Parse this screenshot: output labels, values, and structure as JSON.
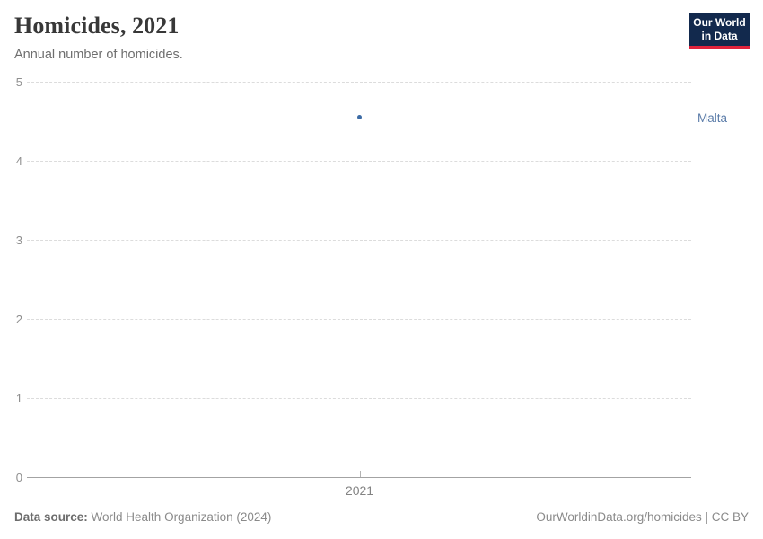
{
  "header": {
    "title": "Homicides, 2021",
    "subtitle": "Annual number of homicides.",
    "logo": {
      "line1": "Our World",
      "line2": "in Data",
      "background_color": "#12294d",
      "accent_color": "#e0233c"
    }
  },
  "chart_data": {
    "type": "scatter",
    "title": "Homicides, 2021",
    "subtitle": "Annual number of homicides.",
    "x": [
      2021
    ],
    "series": [
      {
        "name": "Malta",
        "values": [
          4.55
        ],
        "point_color": "#3c6ba5",
        "label_color": "#5b7ca9"
      }
    ],
    "xlabel": "",
    "ylabel": "",
    "ylim": [
      0,
      5
    ],
    "yticks": [
      0,
      1,
      2,
      3,
      4,
      5
    ],
    "xticks": [
      "2021"
    ],
    "grid": true,
    "grid_style": "dashed",
    "legend_position": "entity label right of plot"
  },
  "footer": {
    "source_label": "Data source:",
    "source_value": " World Health Organization (2024)",
    "credit": "OurWorldinData.org/homicides | CC BY"
  }
}
